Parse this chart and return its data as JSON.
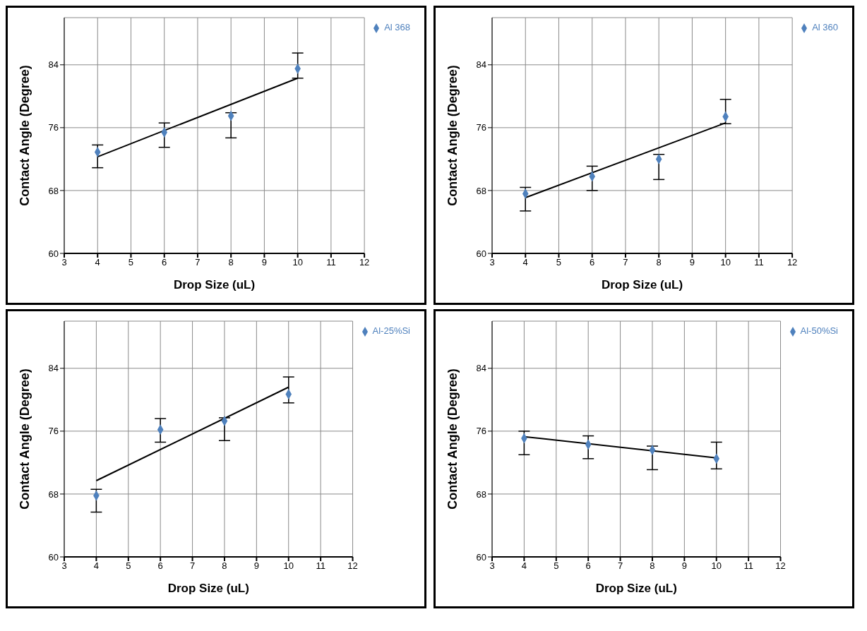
{
  "chart_data": [
    {
      "type": "scatter",
      "xlabel": "Drop Size (uL)",
      "ylabel": "Contact Angle (Degree)",
      "xlim": [
        3,
        12
      ],
      "xticks": [
        3,
        4,
        5,
        6,
        7,
        8,
        9,
        10,
        11,
        12
      ],
      "ylim": [
        60,
        90
      ],
      "yticks": [
        60,
        68,
        76,
        84
      ],
      "grid": true,
      "legend": "top right",
      "series": [
        {
          "name": "Al 368",
          "color": "#4f81bd",
          "marker": "diamond",
          "x": [
            4,
            6,
            8,
            10
          ],
          "values": [
            72.9,
            75.4,
            77.5,
            83.5
          ],
          "errors": [
            [
              70.9,
              73.8
            ],
            [
              73.5,
              76.6
            ],
            [
              74.7,
              77.9
            ],
            [
              82.3,
              85.5
            ]
          ]
        },
        {
          "type": "line",
          "color": "#000000",
          "marker": "none",
          "x": [
            4,
            10
          ],
          "values": [
            72.3,
            82.3
          ]
        }
      ]
    },
    {
      "type": "scatter",
      "xlabel": "Drop Size (uL)",
      "ylabel": "Contact Angle (Degree)",
      "xlim": [
        3,
        12
      ],
      "xticks": [
        3,
        4,
        5,
        6,
        7,
        8,
        9,
        10,
        11,
        12
      ],
      "ylim": [
        60,
        90
      ],
      "yticks": [
        60,
        68,
        76,
        84
      ],
      "grid": true,
      "legend": "top right",
      "series": [
        {
          "name": "Al 360",
          "color": "#4f81bd",
          "marker": "diamond",
          "x": [
            4,
            6,
            8,
            10
          ],
          "values": [
            67.6,
            69.8,
            72.0,
            77.4
          ],
          "errors": [
            [
              65.4,
              68.4
            ],
            [
              68.0,
              71.1
            ],
            [
              69.4,
              72.6
            ],
            [
              76.5,
              79.6
            ]
          ]
        },
        {
          "type": "line",
          "color": "#000000",
          "marker": "none",
          "x": [
            4,
            10
          ],
          "values": [
            67.1,
            76.6
          ]
        }
      ]
    },
    {
      "type": "scatter",
      "xlabel": "Drop Size (uL)",
      "ylabel": "Contact Angle (Degree)",
      "xlim": [
        3,
        12
      ],
      "xticks": [
        3,
        4,
        5,
        6,
        7,
        8,
        9,
        10,
        11,
        12
      ],
      "ylim": [
        60,
        90
      ],
      "yticks": [
        60,
        68,
        76,
        84
      ],
      "grid": true,
      "legend": "top right",
      "series": [
        {
          "name": "Al-25%Si",
          "color": "#4f81bd",
          "marker": "diamond",
          "x": [
            4,
            6,
            8,
            10
          ],
          "values": [
            67.8,
            76.2,
            77.3,
            80.7
          ],
          "errors": [
            [
              65.7,
              68.6
            ],
            [
              74.6,
              77.6
            ],
            [
              74.8,
              77.7
            ],
            [
              79.6,
              82.9
            ]
          ]
        },
        {
          "type": "line",
          "color": "#000000",
          "marker": "none",
          "x": [
            4,
            10
          ],
          "values": [
            69.7,
            81.6
          ]
        }
      ]
    },
    {
      "type": "scatter",
      "xlabel": "Drop Size (uL)",
      "ylabel": "Contact Angle (Degree)",
      "xlim": [
        3,
        12
      ],
      "xticks": [
        3,
        4,
        5,
        6,
        7,
        8,
        9,
        10,
        11,
        12
      ],
      "ylim": [
        60,
        90
      ],
      "yticks": [
        60,
        68,
        76,
        84
      ],
      "grid": true,
      "legend": "top right",
      "series": [
        {
          "name": "Al-50%Si",
          "color": "#4f81bd",
          "marker": "diamond",
          "x": [
            4,
            6,
            8,
            10
          ],
          "values": [
            75.1,
            74.3,
            73.6,
            72.5
          ],
          "errors": [
            [
              73.0,
              76.0
            ],
            [
              72.5,
              75.4
            ],
            [
              71.1,
              74.1
            ],
            [
              71.2,
              74.6
            ]
          ]
        },
        {
          "type": "line",
          "color": "#000000",
          "marker": "none",
          "x": [
            4,
            10
          ],
          "values": [
            75.3,
            72.6
          ]
        }
      ]
    }
  ]
}
